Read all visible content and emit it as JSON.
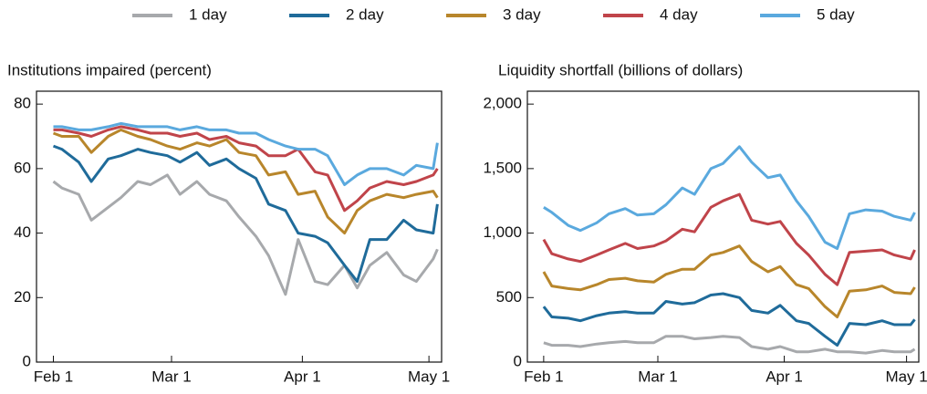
{
  "chart_data": [
    {
      "type": "line",
      "title": "Institutions impaired (percent)",
      "x": [
        "Feb 1",
        "Feb 3",
        "Feb 7",
        "Feb 10",
        "Feb 14",
        "Feb 17",
        "Feb 21",
        "Feb 24",
        "Feb 28",
        "Mar 3",
        "Mar 7",
        "Mar 10",
        "Mar 14",
        "Mar 17",
        "Mar 21",
        "Mar 24",
        "Mar 28",
        "Mar 31",
        "Apr 4",
        "Apr 7",
        "Apr 11",
        "Apr 14",
        "Apr 17",
        "Apr 21",
        "Apr 25",
        "Apr 28",
        "May 2",
        "May 3"
      ],
      "xlim": [
        "Jan 28",
        "May 4"
      ],
      "xticks": [
        "Feb 1",
        "Mar 1",
        "Apr 1",
        "May 1"
      ],
      "ylim": [
        0,
        84
      ],
      "yticks": [
        0,
        20,
        40,
        60,
        80
      ],
      "series": [
        {
          "name": "1 day",
          "color": "#a7a9ac",
          "values": [
            56,
            54,
            52,
            44,
            48,
            51,
            56,
            55,
            58,
            52,
            56,
            52,
            50,
            45,
            39,
            33,
            21,
            38,
            25,
            24,
            30,
            23,
            30,
            34,
            27,
            25,
            32,
            35
          ]
        },
        {
          "name": "2 day",
          "color": "#1f6b9a",
          "values": [
            67,
            66,
            62,
            56,
            63,
            64,
            66,
            65,
            64,
            62,
            65,
            61,
            63,
            60,
            57,
            49,
            47,
            40,
            39,
            37,
            30,
            25,
            38,
            38,
            44,
            41,
            40,
            49
          ]
        },
        {
          "name": "3 day",
          "color": "#b8862b",
          "values": [
            71,
            70,
            70,
            65,
            70,
            72,
            70,
            69,
            67,
            66,
            68,
            67,
            69,
            65,
            64,
            58,
            59,
            52,
            53,
            45,
            40,
            47,
            50,
            52,
            51,
            52,
            53,
            51
          ]
        },
        {
          "name": "4 day",
          "color": "#c0444a",
          "values": [
            72,
            72,
            71,
            70,
            72,
            73,
            72,
            71,
            71,
            70,
            71,
            69,
            70,
            68,
            67,
            64,
            64,
            66,
            59,
            58,
            47,
            50,
            54,
            56,
            55,
            56,
            58,
            60
          ]
        },
        {
          "name": "5 day",
          "color": "#5aa9de",
          "values": [
            73,
            73,
            72,
            72,
            73,
            74,
            73,
            73,
            73,
            72,
            73,
            72,
            72,
            71,
            71,
            69,
            67,
            66,
            66,
            64,
            55,
            58,
            60,
            60,
            58,
            61,
            60,
            68
          ]
        }
      ]
    },
    {
      "type": "line",
      "title": "Liquidity shortfall (billions of dollars)",
      "x": [
        "Feb 1",
        "Feb 3",
        "Feb 7",
        "Feb 10",
        "Feb 14",
        "Feb 17",
        "Feb 21",
        "Feb 24",
        "Feb 28",
        "Mar 3",
        "Mar 7",
        "Mar 10",
        "Mar 14",
        "Mar 17",
        "Mar 21",
        "Mar 24",
        "Mar 28",
        "Mar 31",
        "Apr 4",
        "Apr 7",
        "Apr 11",
        "Apr 14",
        "Apr 17",
        "Apr 21",
        "Apr 25",
        "Apr 28",
        "May 2",
        "May 3"
      ],
      "xlim": [
        "Jan 28",
        "May 4"
      ],
      "xticks": [
        "Feb 1",
        "Mar 1",
        "Apr 1",
        "May 1"
      ],
      "ylim": [
        0,
        2100
      ],
      "yticks": [
        0,
        500,
        {
          "value": 1000,
          "label": "1,000"
        },
        {
          "value": 1500,
          "label": "1,500"
        },
        {
          "value": 2000,
          "label": "2,000"
        }
      ],
      "series": [
        {
          "color": "#a7a9ac",
          "values": [
            150,
            130,
            130,
            120,
            140,
            150,
            160,
            150,
            150,
            200,
            200,
            180,
            190,
            200,
            190,
            120,
            100,
            120,
            80,
            80,
            100,
            80,
            80,
            70,
            90,
            80,
            80,
            100
          ]
        },
        {
          "color": "#1f6b9a",
          "values": [
            430,
            350,
            340,
            320,
            360,
            380,
            390,
            380,
            380,
            470,
            450,
            460,
            520,
            530,
            500,
            400,
            380,
            440,
            320,
            300,
            200,
            130,
            300,
            290,
            320,
            290,
            290,
            330
          ]
        },
        {
          "color": "#b8862b",
          "values": [
            700,
            590,
            570,
            560,
            600,
            640,
            650,
            630,
            620,
            680,
            720,
            720,
            830,
            850,
            900,
            780,
            700,
            740,
            600,
            570,
            430,
            350,
            550,
            560,
            590,
            540,
            530,
            580
          ]
        },
        {
          "color": "#c0444a",
          "values": [
            950,
            840,
            800,
            780,
            830,
            870,
            920,
            880,
            900,
            940,
            1030,
            1010,
            1200,
            1250,
            1300,
            1100,
            1070,
            1090,
            920,
            830,
            680,
            600,
            850,
            860,
            870,
            830,
            800,
            870
          ]
        },
        {
          "color": "#5aa9de",
          "values": [
            1200,
            1160,
            1060,
            1020,
            1080,
            1150,
            1190,
            1140,
            1150,
            1220,
            1350,
            1300,
            1500,
            1540,
            1670,
            1550,
            1430,
            1450,
            1250,
            1130,
            930,
            880,
            1150,
            1180,
            1170,
            1130,
            1100,
            1160
          ]
        }
      ]
    }
  ]
}
